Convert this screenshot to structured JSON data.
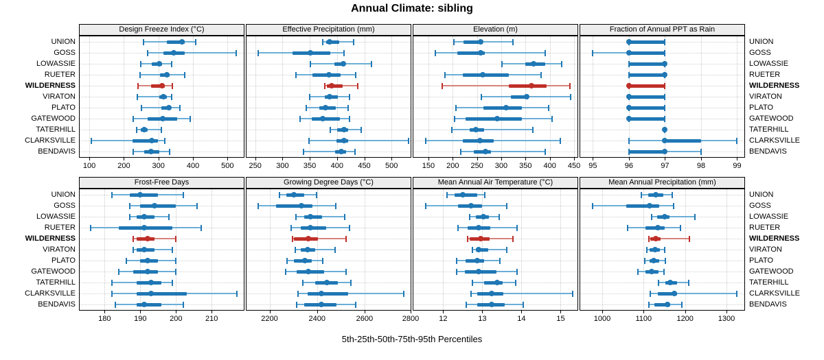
{
  "title": "Annual Climate: sibling",
  "caption": "5th-25th-50th-75th-95th Percentiles",
  "colors": {
    "series": "#1f77b4",
    "series_line": "#6baed6",
    "highlight": "#bf2f28",
    "highlight_line": "#d6827c",
    "grid": "#c9c9c9",
    "strip_bg": "#ededed",
    "border": "#000000"
  },
  "chart_data": {
    "type": "dotplot-intervals",
    "layout": {
      "rows": 2,
      "cols": 4
    },
    "percentiles": [
      5,
      25,
      50,
      75,
      95
    ],
    "categories": [
      "UNION",
      "GOSS",
      "LOWASSIE",
      "RUETER",
      "WILDERNESS",
      "VIRATON",
      "PLATO",
      "GATEWOOD",
      "TATERHILL",
      "CLARKSVILLE",
      "BENDAVIS"
    ],
    "highlight_site": "WILDERNESS",
    "highlight_index": 4,
    "panels": [
      {
        "title": "Design Freeze Index (°C)",
        "row": 0,
        "col": 0,
        "xlim": [
          72,
          547
        ],
        "ticks": [
          100,
          200,
          300,
          400,
          500
        ],
        "values": [
          [
            256,
            324,
            368,
            376,
            408
          ],
          [
            269,
            315,
            345,
            377,
            525
          ],
          [
            249,
            281,
            303,
            310,
            339
          ],
          [
            247,
            304,
            324,
            333,
            377
          ],
          [
            241,
            279,
            310,
            318,
            341
          ],
          [
            239,
            302,
            315,
            324,
            339
          ],
          [
            251,
            308,
            330,
            337,
            363
          ],
          [
            228,
            269,
            313,
            354,
            392
          ],
          [
            236,
            249,
            259,
            269,
            308
          ],
          [
            105,
            225,
            280,
            298,
            318
          ],
          [
            228,
            259,
            278,
            302,
            333
          ]
        ]
      },
      {
        "title": "Effective Precipitation (mm)",
        "row": 0,
        "col": 1,
        "xlim": [
          234,
          535
        ],
        "ticks": [
          250,
          300,
          350,
          400,
          450,
          500
        ],
        "values": [
          [
            374,
            380,
            387,
            404,
            430
          ],
          [
            255,
            318,
            351,
            388,
            413
          ],
          [
            351,
            395,
            411,
            415,
            463
          ],
          [
            325,
            355,
            385,
            407,
            434
          ],
          [
            377,
            381,
            390,
            410,
            438
          ],
          [
            350,
            377,
            387,
            402,
            423
          ],
          [
            343,
            368,
            379,
            398,
            421
          ],
          [
            332,
            354,
            374,
            405,
            423
          ],
          [
            388,
            400,
            413,
            420,
            444
          ],
          [
            348,
            399,
            413,
            420,
            531
          ],
          [
            339,
            396,
            408,
            417,
            433
          ]
        ]
      },
      {
        "title": "Elevation (m)",
        "row": 0,
        "col": 2,
        "xlim": [
          119,
          457
        ],
        "ticks": [
          150,
          200,
          250,
          300,
          350,
          400,
          450
        ],
        "values": [
          [
            203,
            222,
            258,
            262,
            324
          ],
          [
            164,
            210,
            257,
            266,
            390
          ],
          [
            301,
            350,
            366,
            390,
            424
          ],
          [
            184,
            221,
            262,
            315,
            382
          ],
          [
            179,
            315,
            362,
            394,
            441
          ],
          [
            259,
            320,
            353,
            357,
            443
          ],
          [
            207,
            263,
            310,
            342,
            397
          ],
          [
            204,
            227,
            291,
            342,
            405
          ],
          [
            198,
            235,
            248,
            265,
            365
          ],
          [
            144,
            221,
            256,
            284,
            421
          ],
          [
            217,
            244,
            268,
            279,
            391
          ]
        ]
      },
      {
        "title": "Fraction of Annual PPT as Rain",
        "row": 0,
        "col": 3,
        "xlim": [
          94.65,
          99.2
        ],
        "ticks": [
          95,
          96,
          97,
          98,
          99
        ],
        "values": [
          [
            96,
            96,
            96,
            97,
            97
          ],
          [
            95,
            96,
            96,
            97,
            97
          ],
          [
            96,
            96,
            97,
            97,
            97
          ],
          [
            96,
            96,
            97,
            97,
            97
          ],
          [
            96,
            96,
            96,
            97,
            97
          ],
          [
            96,
            96,
            96,
            97,
            97
          ],
          [
            96,
            96,
            96,
            97,
            97
          ],
          [
            96,
            96,
            96,
            97,
            97
          ],
          [
            97,
            97,
            97,
            97,
            97
          ],
          [
            96,
            97,
            97,
            98,
            99
          ],
          [
            96,
            96,
            97,
            97,
            98
          ]
        ]
      },
      {
        "title": "Frost-Free Days",
        "row": 1,
        "col": 0,
        "xlim": [
          173,
          219
        ],
        "ticks": [
          180,
          190,
          200,
          210
        ],
        "values": [
          [
            182,
            187,
            190,
            195,
            202
          ],
          [
            187,
            190,
            194,
            200,
            206
          ],
          [
            187,
            189,
            191,
            194,
            198
          ],
          [
            176,
            184,
            191,
            199,
            207
          ],
          [
            188,
            189,
            192,
            194,
            200
          ],
          [
            188,
            189,
            191,
            194,
            199
          ],
          [
            186,
            190,
            192,
            195,
            200
          ],
          [
            184,
            188,
            192,
            195,
            200
          ],
          [
            182,
            189,
            193,
            196,
            199
          ],
          [
            182,
            189,
            193,
            203,
            217
          ],
          [
            183,
            189,
            191,
            196,
            202
          ]
        ]
      },
      {
        "title": "Growing Degree Days (°C)",
        "row": 1,
        "col": 1,
        "xlim": [
          2103,
          2794
        ],
        "ticks": [
          2200,
          2400,
          2600,
          2800
        ],
        "values": [
          [
            2243,
            2272,
            2303,
            2346,
            2399
          ],
          [
            2152,
            2227,
            2334,
            2380,
            2479
          ],
          [
            2310,
            2345,
            2372,
            2422,
            2515
          ],
          [
            2291,
            2332,
            2372,
            2437,
            2536
          ],
          [
            2296,
            2303,
            2364,
            2403,
            2523
          ],
          [
            2307,
            2332,
            2360,
            2391,
            2475
          ],
          [
            2275,
            2303,
            2348,
            2377,
            2425
          ],
          [
            2269,
            2315,
            2364,
            2431,
            2523
          ],
          [
            2341,
            2393,
            2441,
            2487,
            2542
          ],
          [
            2319,
            2361,
            2418,
            2532,
            2764
          ],
          [
            2313,
            2345,
            2418,
            2482,
            2563
          ]
        ]
      },
      {
        "title": "Mean Annual Air Temperature (°C)",
        "row": 1,
        "col": 2,
        "xlim": [
          11.24,
          15.43
        ],
        "ticks": [
          12,
          13,
          14,
          15
        ],
        "values": [
          [
            12.1,
            12.3,
            12.5,
            12.87,
            13.07
          ],
          [
            11.55,
            12.38,
            12.72,
            13.0,
            13.63
          ],
          [
            12.67,
            12.84,
            13.03,
            13.17,
            13.44
          ],
          [
            12.38,
            12.63,
            12.9,
            13.2,
            13.88
          ],
          [
            12.63,
            12.68,
            12.96,
            13.19,
            13.78
          ],
          [
            12.74,
            12.84,
            12.91,
            13.15,
            13.62
          ],
          [
            12.35,
            12.57,
            12.87,
            13.05,
            13.45
          ],
          [
            12.34,
            12.55,
            12.91,
            13.36,
            13.88
          ],
          [
            12.74,
            13.05,
            13.38,
            13.52,
            13.86
          ],
          [
            12.71,
            12.87,
            13.23,
            13.53,
            15.3
          ],
          [
            12.59,
            12.87,
            13.23,
            13.58,
            14.04
          ]
        ]
      },
      {
        "title": "Mean Annual Precipitation (mm)",
        "row": 1,
        "col": 3,
        "xlim": [
          947,
          1343
        ],
        "ticks": [
          1000,
          1100,
          1200,
          1300
        ],
        "values": [
          [
            1094,
            1111,
            1129,
            1147,
            1169
          ],
          [
            977,
            1058,
            1114,
            1138,
            1172
          ],
          [
            1119,
            1132,
            1151,
            1162,
            1223
          ],
          [
            1061,
            1105,
            1134,
            1151,
            1189
          ],
          [
            1112,
            1116,
            1130,
            1141,
            1211
          ],
          [
            1108,
            1115,
            1127,
            1140,
            1151
          ],
          [
            1103,
            1114,
            1125,
            1138,
            1152
          ],
          [
            1087,
            1104,
            1119,
            1136,
            1149
          ],
          [
            1136,
            1152,
            1164,
            1181,
            1208
          ],
          [
            1116,
            1134,
            1174,
            1180,
            1324
          ],
          [
            1112,
            1126,
            1158,
            1164,
            1192
          ]
        ]
      }
    ]
  }
}
